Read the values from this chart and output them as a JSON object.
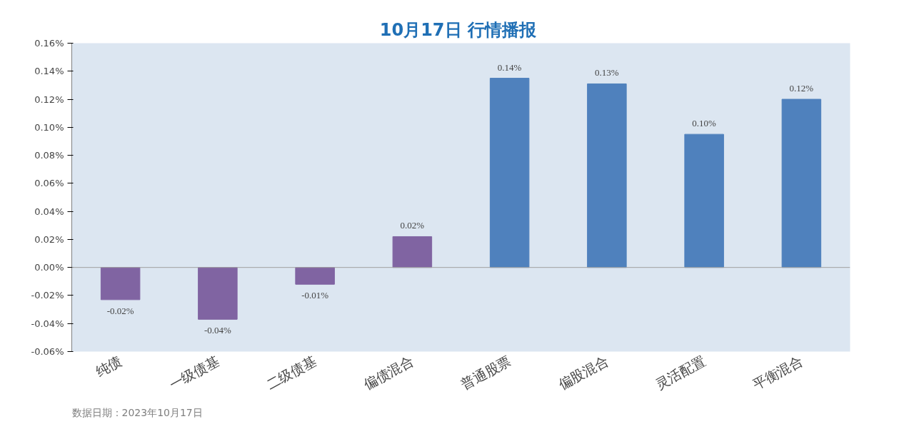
{
  "chart_data": {
    "type": "bar",
    "title": "10月17日  行情播报",
    "categories": [
      "纯债",
      "一级债基",
      "二级债基",
      "偏债混合",
      "普通股票",
      "偏股混合",
      "灵活配置",
      "平衡混合"
    ],
    "values": [
      -0.023,
      -0.037,
      -0.012,
      0.022,
      0.135,
      0.131,
      0.095,
      0.12
    ],
    "value_labels": [
      "-0.02%",
      "-0.04%",
      "-0.01%",
      "0.02%",
      "0.14%",
      "0.13%",
      "0.10%",
      "0.12%"
    ],
    "colors": [
      "#8064a2",
      "#8064a2",
      "#8064a2",
      "#8064a2",
      "#4f81bd",
      "#4f81bd",
      "#4f81bd",
      "#4f81bd"
    ],
    "ylim": [
      -0.06,
      0.16
    ],
    "yticks": [
      {
        "value": -0.06,
        "label": "-0.06%"
      },
      {
        "value": -0.04,
        "label": "-0.04%"
      },
      {
        "value": -0.02,
        "label": "-0.02%"
      },
      {
        "value": 0,
        "label": "0.00%"
      },
      {
        "value": 0.02,
        "label": "0.02%"
      },
      {
        "value": 0.04,
        "label": "0.04%"
      },
      {
        "value": 0.06,
        "label": "0.06%"
      },
      {
        "value": 0.08,
        "label": "0.08%"
      },
      {
        "value": 0.1,
        "label": "0.10%"
      },
      {
        "value": 0.12,
        "label": "0.12%"
      },
      {
        "value": 0.14,
        "label": "0.14%"
      },
      {
        "value": 0.16,
        "label": "0.16%"
      }
    ],
    "grid": false,
    "ref_lines": [
      {
        "axis": "y",
        "value": 0,
        "color": "#a0a0a0",
        "line_style": "solid"
      }
    ],
    "annotations": [
      "数据日期：2023年10月17日"
    ]
  }
}
